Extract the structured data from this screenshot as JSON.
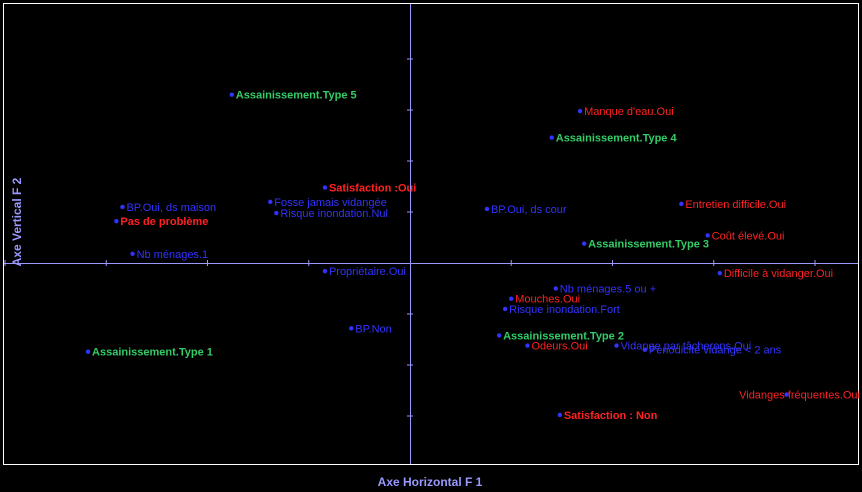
{
  "chart_data": {
    "type": "scatter",
    "title": "",
    "xlabel": "Axe Horizontal F 1",
    "ylabel": "Axe Vertical F 2",
    "xlim": [
      -1.0,
      1.0
    ],
    "ylim": [
      -1.0,
      1.0
    ],
    "grid": false,
    "colors": {
      "background": "#000000",
      "frame": "#ffffff",
      "axes": "#9999ff",
      "axis_title": "#9999ff",
      "blue": "#3333ff",
      "red": "#ff2222",
      "green": "#33cc66",
      "marker": "#3333ff"
    },
    "points": [
      {
        "label": "Assainissement.Type 5",
        "x": -0.44,
        "y": 0.825,
        "color": "green",
        "bold": true
      },
      {
        "label": "Manque d'eau.Oui",
        "x": 0.42,
        "y": 0.745,
        "color": "red",
        "bold": false
      },
      {
        "label": "Assainissement.Type 4",
        "x": 0.35,
        "y": 0.615,
        "color": "green",
        "bold": true
      },
      {
        "label": "Satisfaction :Oui",
        "x": -0.21,
        "y": 0.37,
        "color": "red",
        "bold": true
      },
      {
        "label": "Fosse jamais vidangée",
        "x": -0.345,
        "y": 0.3,
        "color": "blue",
        "bold": false
      },
      {
        "label": "BP.Oui, ds maison",
        "x": -0.71,
        "y": 0.275,
        "color": "blue",
        "bold": false
      },
      {
        "label": "Entretien difficile.Oui",
        "x": 0.67,
        "y": 0.29,
        "color": "red",
        "bold": false
      },
      {
        "label": "Risque inondation.Nul",
        "x": -0.33,
        "y": 0.245,
        "color": "blue",
        "bold": false
      },
      {
        "label": "BP.Oui, ds cour",
        "x": 0.19,
        "y": 0.265,
        "color": "blue",
        "bold": false
      },
      {
        "label": "Pas de problème",
        "x": -0.725,
        "y": 0.205,
        "color": "red",
        "bold": true
      },
      {
        "label": "Coût élevé.Oui",
        "x": 0.735,
        "y": 0.135,
        "color": "red",
        "bold": false
      },
      {
        "label": "Assainissement.Type 3",
        "x": 0.43,
        "y": 0.095,
        "color": "green",
        "bold": true
      },
      {
        "label": "Nb ménages.1",
        "x": -0.685,
        "y": 0.045,
        "color": "blue",
        "bold": false
      },
      {
        "label": "Propriétaire.Oui",
        "x": -0.21,
        "y": -0.04,
        "color": "blue",
        "bold": false
      },
      {
        "label": "Difficile à vidanger.Oui",
        "x": 0.765,
        "y": -0.05,
        "color": "red",
        "bold": false
      },
      {
        "label": "Nb ménages.5 ou +",
        "x": 0.36,
        "y": -0.125,
        "color": "blue",
        "bold": false
      },
      {
        "label": "Mouches.Oui",
        "x": 0.25,
        "y": -0.175,
        "color": "red",
        "bold": false
      },
      {
        "label": "Risque inondation.Fort",
        "x": 0.235,
        "y": -0.225,
        "color": "blue",
        "bold": false
      },
      {
        "label": "Assainissement.Type 2",
        "x": 0.22,
        "y": -0.355,
        "color": "green",
        "bold": true
      },
      {
        "label": "BP.Non",
        "x": -0.145,
        "y": -0.32,
        "color": "blue",
        "bold": false
      },
      {
        "label": "Assainissement.Type 1",
        "x": -0.795,
        "y": -0.435,
        "color": "green",
        "bold": true
      },
      {
        "label": "Vidange par tâcherons.Oui",
        "x": 0.51,
        "y": -0.405,
        "color": "blue",
        "bold": false
      },
      {
        "label": "Odeurs.Oui",
        "x": 0.29,
        "y": -0.405,
        "color": "red",
        "bold": false
      },
      {
        "label": "Périodicité vidange < 2 ans",
        "x": 0.58,
        "y": -0.425,
        "color": "blue",
        "bold": false
      },
      {
        "label": "Vidanges fréquentes.Oui",
        "x": 0.93,
        "y": -0.645,
        "color": "red",
        "bold": false
      },
      {
        "label": "Satisfaction : Non",
        "x": 0.37,
        "y": -0.745,
        "color": "red",
        "bold": true
      }
    ]
  }
}
